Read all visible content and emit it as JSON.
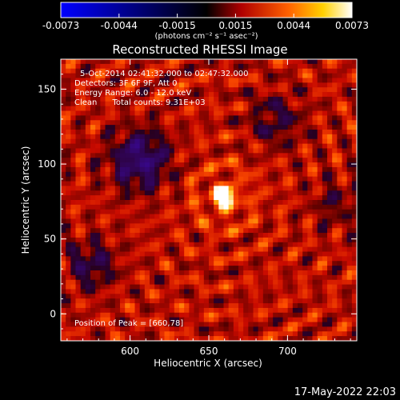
{
  "chart_data": {
    "type": "heatmap",
    "title": "Reconstructed RHESSI Image",
    "xlabel": "Heliocentric X (arcsec)",
    "ylabel": "Heliocentric Y (arcsec)",
    "xlim": [
      556,
      744
    ],
    "ylim": [
      -18,
      170
    ],
    "xticks": [
      600,
      650,
      700
    ],
    "yticks": [
      0,
      50,
      100,
      150
    ],
    "colorbar": {
      "min": -0.0073,
      "max": 0.0073,
      "ticks": [
        "-0.0073",
        "-0.0044",
        "-0.0015",
        "0.0015",
        "0.0044",
        "0.0073"
      ],
      "unit_label": "(photons cm⁻² s⁻¹ asec⁻²)",
      "palette": [
        "#0000ff",
        "#000000",
        "#b00000",
        "#ff6000",
        "#ffd000",
        "#ffffff"
      ]
    },
    "annotations": [
      "5-Oct-2014 02:41:32.000 to 02:47:32.000",
      "Detectors: 3F 6F 9F, Att 0",
      "Energy Range: 6.0 - 12.0 keV",
      "Clean      Total counts: 9.31E+03"
    ],
    "peak_label": "Position of Peak = [660,78]",
    "peak": {
      "x": 660,
      "y": 78
    },
    "background_colors": {
      "plot_bg": "#a01000",
      "outer_bg": "#000000"
    }
  },
  "footer": {
    "timestamp": "17-May-2022 22:03"
  }
}
